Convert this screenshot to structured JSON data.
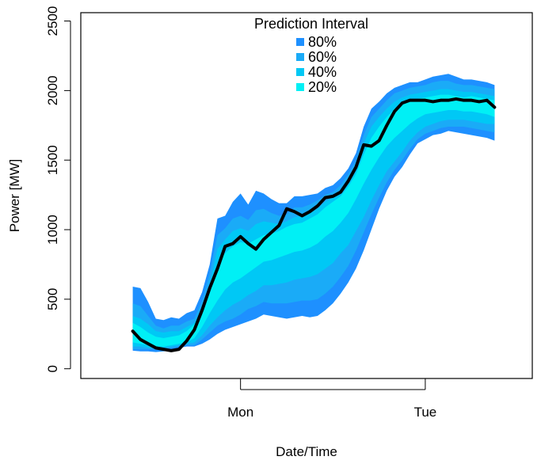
{
  "chart_data": {
    "type": "area",
    "xlabel": "Date/Time",
    "ylabel": "Power [MW]",
    "x_ticks": [
      "Mon",
      "Tue"
    ],
    "y_ticks": [
      0,
      500,
      1000,
      1500,
      2000,
      2500
    ],
    "ylim": [
      -70,
      2560
    ],
    "legend": {
      "title": "Prediction Interval",
      "entries": [
        {
          "label": "80%",
          "color": "#1e90ff"
        },
        {
          "label": "60%",
          "color": "#1aabf7"
        },
        {
          "label": "40%",
          "color": "#00c8f5"
        },
        {
          "label": "20%",
          "color": "#00f0f5"
        }
      ],
      "placement": "top-center"
    },
    "x_range": [
      -6.75,
      51.9
    ],
    "time_points": [
      0,
      1,
      2,
      3,
      4,
      5,
      6,
      7,
      8,
      9,
      10,
      11,
      12,
      13,
      14,
      15,
      16,
      17,
      18,
      19,
      20,
      21,
      22,
      23,
      24,
      25,
      26,
      27,
      28,
      29,
      30,
      31,
      32,
      33,
      34,
      35,
      36,
      37,
      38,
      39,
      40,
      41,
      42,
      43,
      44,
      45,
      46,
      47
    ],
    "time_ticks": [
      {
        "label": "Mon",
        "x": 14
      },
      {
        "label": "Tue",
        "x": 38
      }
    ],
    "forecast": [
      270,
      210,
      180,
      150,
      140,
      130,
      140,
      200,
      280,
      420,
      580,
      720,
      880,
      900,
      950,
      900,
      860,
      930,
      980,
      1030,
      1150,
      1130,
      1100,
      1130,
      1170,
      1230,
      1240,
      1270,
      1350,
      1450,
      1610,
      1600,
      1640,
      1750,
      1850,
      1910,
      1930,
      1930,
      1930,
      1920,
      1930,
      1930,
      1940,
      1930,
      1930,
      1920,
      1930,
      1880
    ],
    "bands": [
      {
        "label": "80%",
        "lower": [
          130,
          125,
          125,
          120,
          125,
          130,
          150,
          160,
          160,
          180,
          210,
          250,
          280,
          300,
          320,
          340,
          360,
          390,
          380,
          370,
          360,
          370,
          380,
          370,
          380,
          420,
          470,
          540,
          620,
          720,
          850,
          1000,
          1150,
          1280,
          1380,
          1450,
          1540,
          1620,
          1650,
          1680,
          1690,
          1710,
          1700,
          1690,
          1680,
          1670,
          1660,
          1640
        ],
        "upper": [
          590,
          580,
          480,
          360,
          350,
          370,
          360,
          400,
          420,
          550,
          750,
          1080,
          1100,
          1200,
          1260,
          1180,
          1280,
          1260,
          1220,
          1190,
          1190,
          1240,
          1240,
          1250,
          1260,
          1300,
          1320,
          1370,
          1440,
          1550,
          1740,
          1870,
          1920,
          1980,
          2020,
          2040,
          2060,
          2060,
          2080,
          2100,
          2110,
          2120,
          2100,
          2080,
          2080,
          2070,
          2060,
          2040
        ]
      },
      {
        "label": "60%",
        "lower": [
          140,
          140,
          140,
          140,
          140,
          150,
          160,
          170,
          170,
          210,
          260,
          310,
          340,
          360,
          390,
          430,
          450,
          480,
          470,
          470,
          470,
          480,
          490,
          490,
          500,
          540,
          590,
          660,
          740,
          850,
          980,
          1110,
          1230,
          1340,
          1430,
          1500,
          1580,
          1650,
          1690,
          1710,
          1730,
          1740,
          1740,
          1740,
          1730,
          1720,
          1710,
          1700
        ],
        "upper": [
          470,
          450,
          380,
          310,
          290,
          310,
          310,
          340,
          360,
          490,
          680,
          960,
          1010,
          1080,
          1100,
          1070,
          1140,
          1150,
          1120,
          1100,
          1110,
          1160,
          1160,
          1180,
          1210,
          1250,
          1270,
          1320,
          1400,
          1500,
          1680,
          1810,
          1870,
          1930,
          1980,
          2000,
          2020,
          2030,
          2040,
          2060,
          2070,
          2070,
          2050,
          2040,
          2040,
          2030,
          2020,
          2010
        ]
      },
      {
        "label": "40%",
        "lower": [
          160,
          160,
          150,
          150,
          150,
          160,
          170,
          180,
          190,
          240,
          310,
          370,
          420,
          460,
          490,
          530,
          560,
          600,
          600,
          610,
          620,
          640,
          650,
          660,
          680,
          720,
          760,
          830,
          890,
          990,
          1090,
          1210,
          1320,
          1420,
          1490,
          1560,
          1640,
          1700,
          1740,
          1760,
          1780,
          1790,
          1790,
          1790,
          1780,
          1770,
          1760,
          1760
        ],
        "upper": [
          380,
          360,
          320,
          270,
          260,
          270,
          270,
          300,
          330,
          430,
          610,
          860,
          930,
          990,
          1010,
          990,
          1040,
          1060,
          1050,
          1040,
          1060,
          1090,
          1100,
          1120,
          1150,
          1200,
          1230,
          1270,
          1350,
          1450,
          1620,
          1740,
          1810,
          1870,
          1920,
          1950,
          1970,
          1980,
          1990,
          2000,
          2010,
          2010,
          2000,
          1990,
          1990,
          1980,
          1970,
          1960
        ]
      },
      {
        "label": "20%",
        "lower": [
          190,
          180,
          170,
          160,
          160,
          170,
          180,
          190,
          220,
          300,
          400,
          490,
          570,
          620,
          650,
          690,
          730,
          770,
          780,
          800,
          820,
          840,
          850,
          870,
          900,
          950,
          990,
          1050,
          1120,
          1220,
          1330,
          1430,
          1520,
          1600,
          1660,
          1710,
          1760,
          1800,
          1830,
          1840,
          1850,
          1860,
          1860,
          1850,
          1850,
          1840,
          1830,
          1810
        ],
        "upper": [
          330,
          300,
          260,
          230,
          220,
          230,
          240,
          270,
          320,
          410,
          560,
          760,
          830,
          880,
          910,
          900,
          930,
          960,
          970,
          990,
          1020,
          1040,
          1050,
          1080,
          1110,
          1160,
          1200,
          1240,
          1310,
          1400,
          1540,
          1660,
          1740,
          1810,
          1870,
          1910,
          1930,
          1940,
          1950,
          1960,
          1970,
          1970,
          1960,
          1950,
          1960,
          1950,
          1940,
          1930
        ]
      }
    ],
    "colors": {
      "forecast_line": "#000000",
      "axis": "#000000",
      "background": "#ffffff"
    }
  }
}
